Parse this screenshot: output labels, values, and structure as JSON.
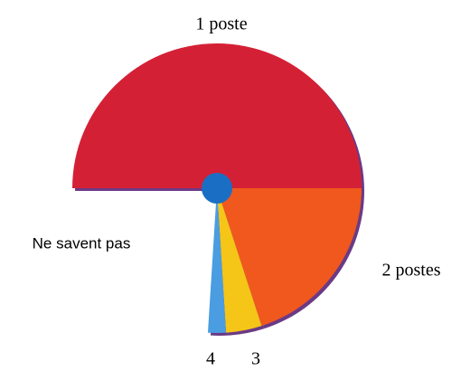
{
  "chart_data": {
    "type": "pie",
    "categories": [
      "1 poste",
      "2 postes",
      "3",
      "4",
      "Ne savent pas"
    ],
    "values": [
      50,
      20,
      4,
      2,
      24
    ],
    "colors": [
      "#d42035",
      "#f0581e",
      "#f5c518",
      "#4a9de0",
      "none"
    ]
  }
}
